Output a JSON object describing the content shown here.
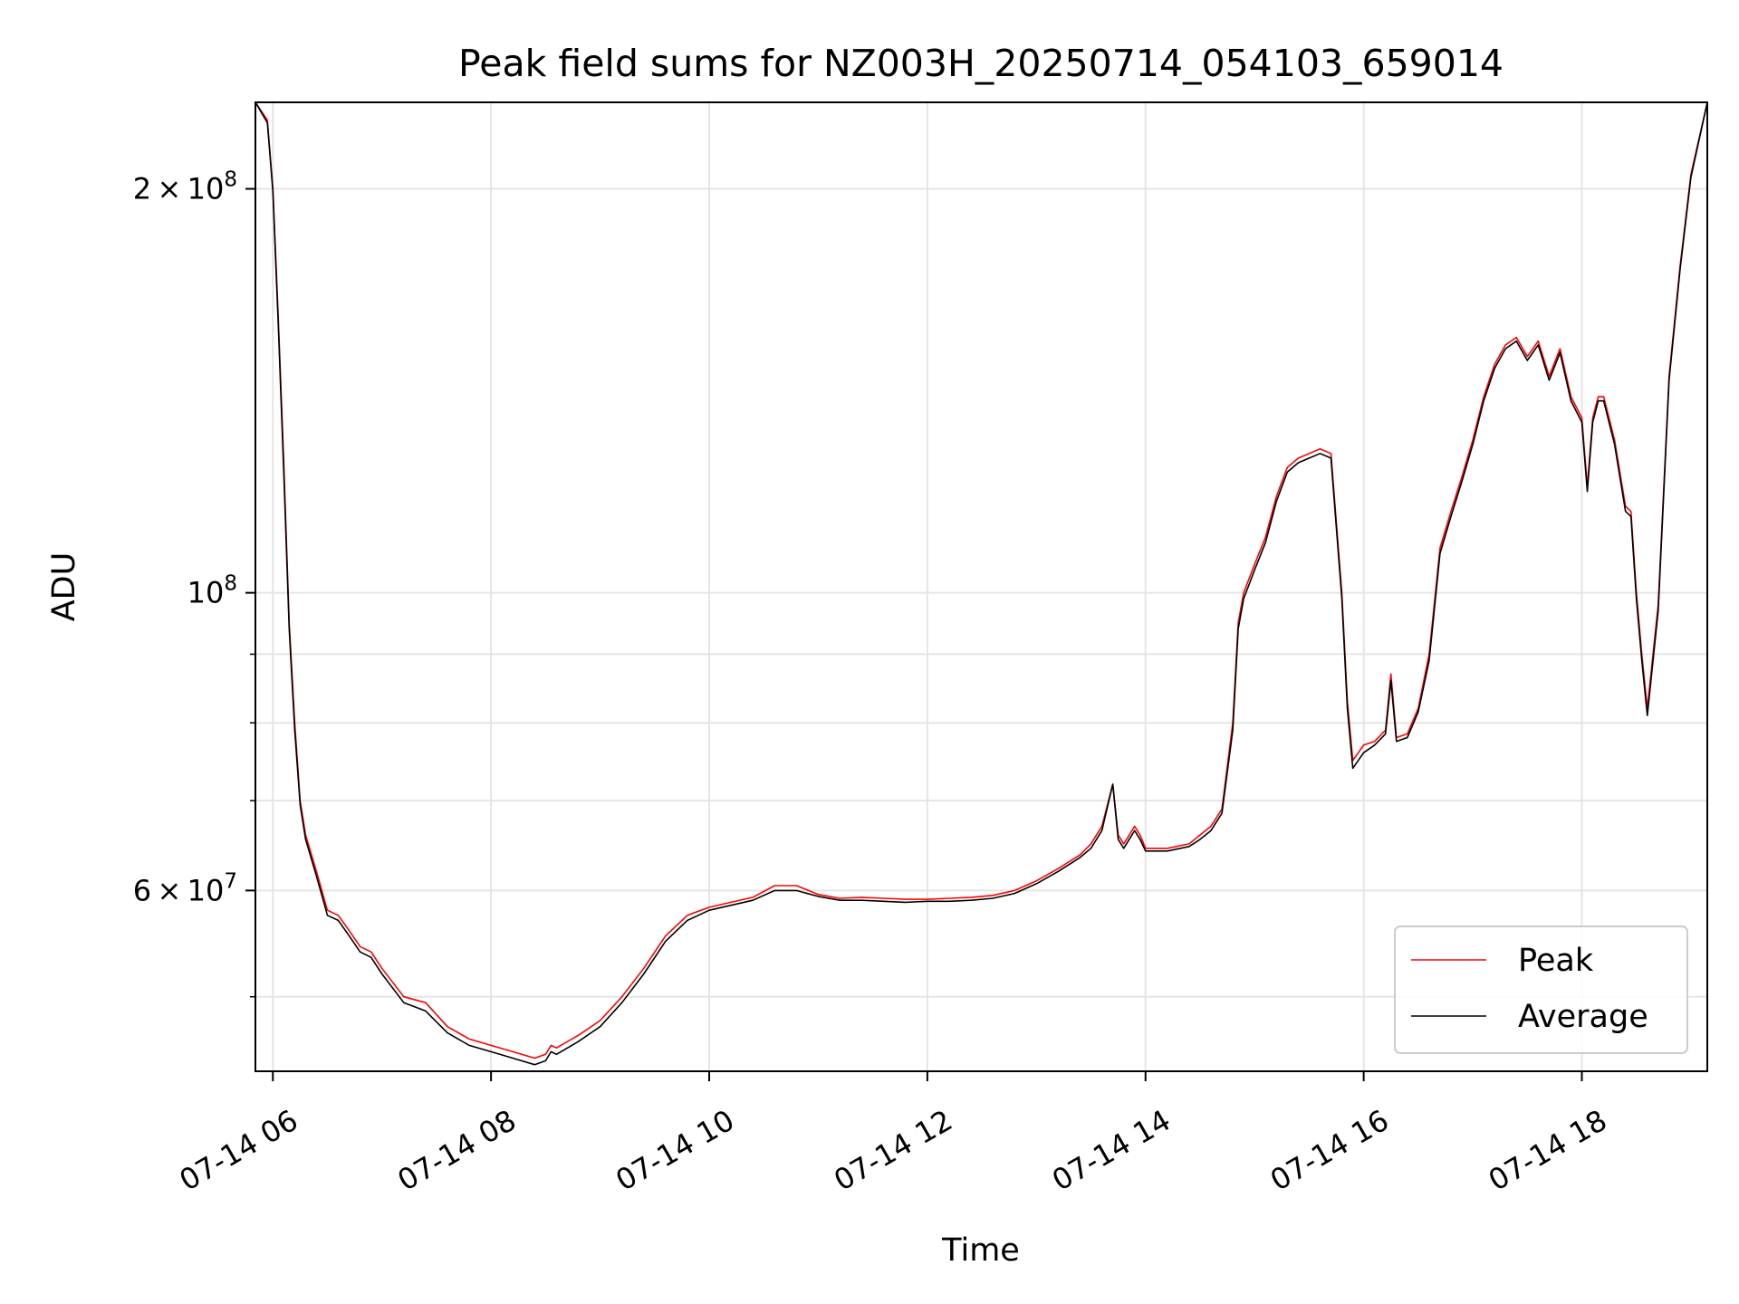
{
  "chart_data": {
    "type": "line",
    "title": "Peak field sums for NZ003H_20250714_054103_659014",
    "xlabel": "Time",
    "ylabel": "ADU",
    "x_axis": {
      "type": "time",
      "range_hours": [
        5.84,
        19.15
      ],
      "ticks": [
        {
          "hour": 6,
          "label": "07-14 06"
        },
        {
          "hour": 8,
          "label": "07-14 08"
        },
        {
          "hour": 10,
          "label": "07-14 10"
        },
        {
          "hour": 12,
          "label": "07-14 12"
        },
        {
          "hour": 14,
          "label": "07-14 14"
        },
        {
          "hour": 16,
          "label": "07-14 16"
        },
        {
          "hour": 18,
          "label": "07-14 18"
        }
      ]
    },
    "y_axis": {
      "scale": "log",
      "range": [
        44000000,
        232000000
      ],
      "major_ticks": [
        {
          "value": 60000000,
          "mantissa": "6",
          "exponent": "7"
        },
        {
          "value": 100000000,
          "mantissa": "",
          "exponent": "8"
        },
        {
          "value": 200000000,
          "mantissa": "2",
          "exponent": "8"
        }
      ],
      "minor_ticks": [
        50000000,
        70000000,
        80000000,
        90000000
      ]
    },
    "grid": true,
    "legend": {
      "position": "lower-right"
    },
    "series": [
      {
        "name": "Peak",
        "color": "#ff0000",
        "x": [
          5.84,
          5.95,
          6.0,
          6.05,
          6.1,
          6.15,
          6.2,
          6.25,
          6.3,
          6.4,
          6.5,
          6.6,
          6.7,
          6.8,
          6.9,
          7.0,
          7.2,
          7.4,
          7.6,
          7.8,
          8.0,
          8.2,
          8.4,
          8.5,
          8.55,
          8.6,
          8.8,
          9.0,
          9.2,
          9.4,
          9.6,
          9.8,
          10.0,
          10.2,
          10.4,
          10.6,
          10.8,
          11.0,
          11.2,
          11.4,
          11.6,
          11.8,
          12.0,
          12.2,
          12.4,
          12.6,
          12.8,
          13.0,
          13.2,
          13.4,
          13.5,
          13.6,
          13.7,
          13.75,
          13.8,
          13.9,
          13.95,
          14.0,
          14.2,
          14.4,
          14.5,
          14.6,
          14.7,
          14.8,
          14.85,
          14.9,
          15.0,
          15.1,
          15.2,
          15.3,
          15.4,
          15.5,
          15.6,
          15.7,
          15.8,
          15.85,
          15.9,
          16.0,
          16.1,
          16.2,
          16.25,
          16.3,
          16.4,
          16.5,
          16.6,
          16.7,
          16.8,
          16.9,
          17.0,
          17.1,
          17.2,
          17.3,
          17.4,
          17.5,
          17.6,
          17.7,
          17.8,
          17.9,
          18.0,
          18.05,
          18.1,
          18.15,
          18.2,
          18.3,
          18.4,
          18.45,
          18.5,
          18.55,
          18.6,
          18.7,
          18.8,
          18.9,
          19.0,
          19.15
        ],
        "y": [
          232000000,
          225000000,
          200000000,
          160000000,
          125000000,
          95000000,
          80000000,
          70000000,
          66000000,
          62000000,
          58000000,
          57500000,
          56000000,
          54500000,
          54000000,
          52500000,
          50000000,
          49500000,
          47500000,
          46500000,
          46000000,
          45500000,
          45000000,
          45300000,
          46000000,
          45800000,
          46800000,
          48000000,
          50000000,
          52500000,
          55500000,
          57500000,
          58300000,
          58800000,
          59300000,
          60500000,
          60500000,
          59600000,
          59200000,
          59300000,
          59200000,
          59100000,
          59100000,
          59200000,
          59300000,
          59500000,
          60000000,
          61000000,
          62300000,
          63800000,
          65000000,
          67000000,
          72000000,
          66000000,
          65000000,
          67000000,
          66000000,
          64500000,
          64500000,
          65000000,
          66000000,
          67000000,
          69000000,
          80000000,
          95000000,
          100000000,
          105000000,
          110000000,
          118000000,
          124000000,
          126000000,
          127000000,
          128000000,
          127000000,
          100000000,
          83000000,
          75000000,
          77000000,
          77500000,
          79000000,
          87000000,
          78000000,
          78500000,
          82000000,
          90000000,
          108000000,
          115000000,
          122000000,
          130000000,
          140000000,
          148000000,
          153000000,
          155000000,
          150000000,
          154000000,
          145000000,
          152000000,
          140000000,
          135000000,
          120000000,
          135000000,
          140000000,
          140000000,
          130000000,
          116000000,
          115000000,
          100000000,
          90000000,
          82000000,
          98000000,
          145000000,
          175000000,
          205000000,
          232000000
        ]
      },
      {
        "name": "Average",
        "color": "#000000",
        "x": [
          5.84,
          5.95,
          6.0,
          6.05,
          6.1,
          6.15,
          6.2,
          6.25,
          6.3,
          6.4,
          6.5,
          6.6,
          6.7,
          6.8,
          6.9,
          7.0,
          7.2,
          7.4,
          7.6,
          7.8,
          8.0,
          8.2,
          8.4,
          8.5,
          8.55,
          8.6,
          8.8,
          9.0,
          9.2,
          9.4,
          9.6,
          9.8,
          10.0,
          10.2,
          10.4,
          10.6,
          10.8,
          11.0,
          11.2,
          11.4,
          11.6,
          11.8,
          12.0,
          12.2,
          12.4,
          12.6,
          12.8,
          13.0,
          13.2,
          13.4,
          13.5,
          13.6,
          13.7,
          13.75,
          13.8,
          13.9,
          13.95,
          14.0,
          14.2,
          14.4,
          14.5,
          14.6,
          14.7,
          14.8,
          14.85,
          14.9,
          15.0,
          15.1,
          15.2,
          15.3,
          15.4,
          15.5,
          15.6,
          15.7,
          15.8,
          15.85,
          15.9,
          16.0,
          16.1,
          16.2,
          16.25,
          16.3,
          16.4,
          16.5,
          16.6,
          16.7,
          16.8,
          16.9,
          17.0,
          17.1,
          17.2,
          17.3,
          17.4,
          17.5,
          17.6,
          17.7,
          17.8,
          17.9,
          18.0,
          18.05,
          18.1,
          18.15,
          18.2,
          18.3,
          18.4,
          18.45,
          18.5,
          18.55,
          18.6,
          18.7,
          18.8,
          18.9,
          19.0,
          19.15
        ],
        "y": [
          232000000,
          224000000,
          199000000,
          158000000,
          123000000,
          94000000,
          79000000,
          69500000,
          65500000,
          61500000,
          57500000,
          57000000,
          55500000,
          54000000,
          53500000,
          52000000,
          49500000,
          48800000,
          47000000,
          46000000,
          45500000,
          45000000,
          44500000,
          44800000,
          45500000,
          45300000,
          46300000,
          47500000,
          49500000,
          52000000,
          55000000,
          57000000,
          58000000,
          58500000,
          59000000,
          60000000,
          60000000,
          59400000,
          59000000,
          59000000,
          58900000,
          58800000,
          58900000,
          58900000,
          59000000,
          59200000,
          59700000,
          60700000,
          62000000,
          63500000,
          64500000,
          66500000,
          72000000,
          65500000,
          64500000,
          66500000,
          65500000,
          64200000,
          64200000,
          64700000,
          65500000,
          66500000,
          68500000,
          79000000,
          94000000,
          99000000,
          104000000,
          109000000,
          117000000,
          123000000,
          125000000,
          126000000,
          127000000,
          126000000,
          99000000,
          82000000,
          74000000,
          76000000,
          77000000,
          78500000,
          86000000,
          77500000,
          78000000,
          81500000,
          89000000,
          107000000,
          114000000,
          121000000,
          129000000,
          139000000,
          147000000,
          152000000,
          154000000,
          149000000,
          153000000,
          144000000,
          151000000,
          139000000,
          134000000,
          119000000,
          134000000,
          139000000,
          139000000,
          129000000,
          115000000,
          114000000,
          99000000,
          89000000,
          81000000,
          97000000,
          144000000,
          174000000,
          204000000,
          232000000
        ]
      }
    ]
  }
}
